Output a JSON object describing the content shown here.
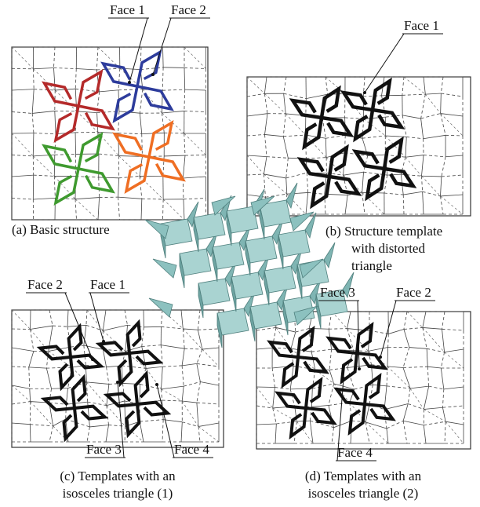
{
  "panels": [
    {
      "faces": [
        "Face 1",
        "Face 2"
      ],
      "caption": [
        "(a) Basic structure"
      ]
    },
    {
      "faces": [
        "Face 1"
      ],
      "caption": [
        "(b) Structure template",
        "with distorted",
        "triangle"
      ]
    },
    {
      "faces": [
        "Face 2",
        "Face 1",
        "Face 3",
        "Face 4"
      ],
      "caption": [
        "(c) Templates with an",
        "isosceles triangle (1)"
      ]
    },
    {
      "faces": [
        "Face 3",
        "Face 2",
        "Face 4"
      ],
      "caption": [
        "(d) Templates with an",
        "isosceles triangle (2)"
      ]
    }
  ]
}
